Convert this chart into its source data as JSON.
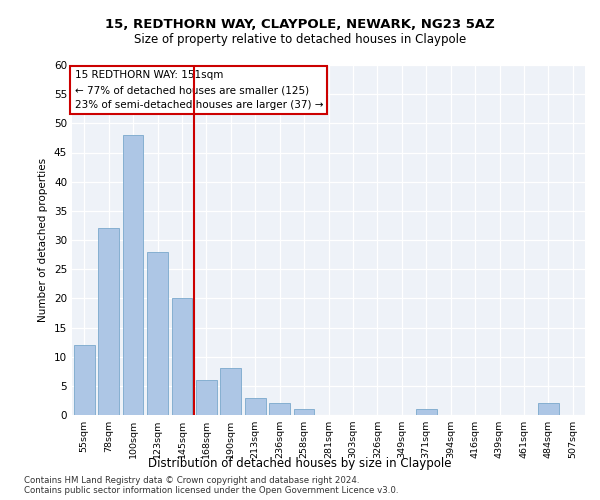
{
  "title1": "15, REDTHORN WAY, CLAYPOLE, NEWARK, NG23 5AZ",
  "title2": "Size of property relative to detached houses in Claypole",
  "xlabel": "Distribution of detached houses by size in Claypole",
  "ylabel": "Number of detached properties",
  "bar_labels": [
    "55sqm",
    "78sqm",
    "100sqm",
    "123sqm",
    "145sqm",
    "168sqm",
    "190sqm",
    "213sqm",
    "236sqm",
    "258sqm",
    "281sqm",
    "303sqm",
    "326sqm",
    "349sqm",
    "371sqm",
    "394sqm",
    "416sqm",
    "439sqm",
    "461sqm",
    "484sqm",
    "507sqm"
  ],
  "bar_values": [
    12,
    32,
    48,
    28,
    20,
    6,
    8,
    3,
    2,
    1,
    0,
    0,
    0,
    0,
    1,
    0,
    0,
    0,
    0,
    2,
    0
  ],
  "bar_color": "#adc6e5",
  "bar_edgecolor": "#7aa8cc",
  "ylim": [
    0,
    60
  ],
  "yticks": [
    0,
    5,
    10,
    15,
    20,
    25,
    30,
    35,
    40,
    45,
    50,
    55,
    60
  ],
  "vline_x": 4.5,
  "vline_color": "#cc0000",
  "annotation_line1": "15 REDTHORN WAY: 151sqm",
  "annotation_line2": "← 77% of detached houses are smaller (125)",
  "annotation_line3": "23% of semi-detached houses are larger (37) →",
  "footer": "Contains HM Land Registry data © Crown copyright and database right 2024.\nContains public sector information licensed under the Open Government Licence v3.0.",
  "background_color": "#eef2f8",
  "grid_color": "#ffffff"
}
